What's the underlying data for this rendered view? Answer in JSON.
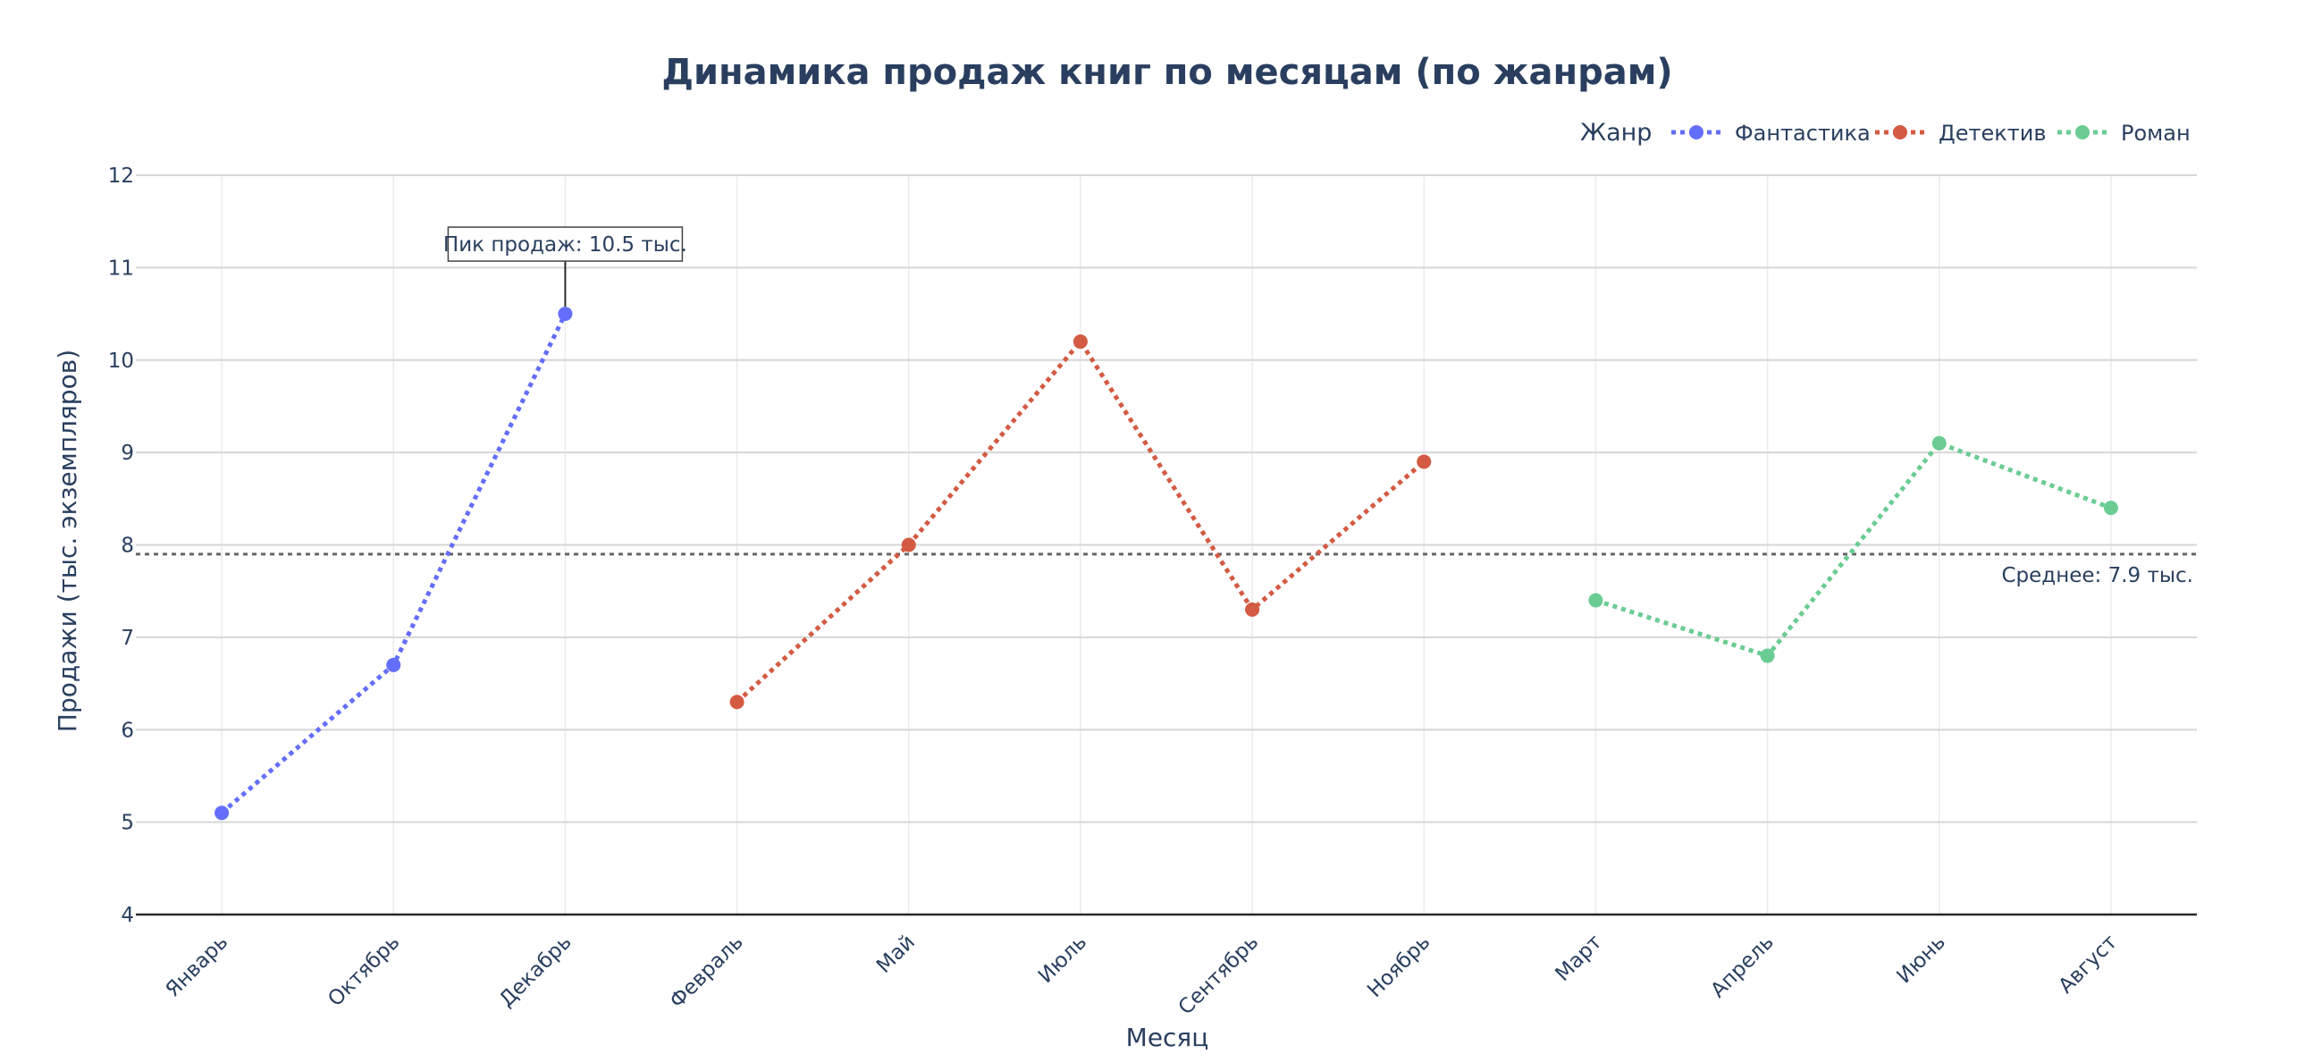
{
  "chart_data": {
    "type": "line",
    "title": "Динамика продаж книг по месяцам (по жанрам)",
    "xlabel": "Месяц",
    "ylabel": "Продажи (тыс. экземпляров)",
    "ylim": [
      4,
      12
    ],
    "yticks": [
      "4",
      "5",
      "6",
      "7",
      "8",
      "9",
      "10",
      "11",
      "12"
    ],
    "categories": [
      "Январь",
      "Октябрь",
      "Декабрь",
      "Февраль",
      "Май",
      "Июль",
      "Сентябрь",
      "Ноябрь",
      "Март",
      "Апрель",
      "Июнь",
      "Август"
    ],
    "grid": true,
    "legend": {
      "title": "Жанр",
      "position": "top-right",
      "orientation": "horizontal"
    },
    "series": [
      {
        "name": "Фантастика",
        "color": "#636efa",
        "line_style": "dotted",
        "x": [
          "Январь",
          "Октябрь",
          "Декабрь"
        ],
        "values": [
          5.1,
          6.7,
          10.5
        ]
      },
      {
        "name": "Детектив",
        "color": "#d35b43",
        "line_style": "dotted",
        "x": [
          "Февраль",
          "Май",
          "Июль",
          "Сентябрь",
          "Ноябрь"
        ],
        "values": [
          6.3,
          8.0,
          10.2,
          7.3,
          8.9
        ]
      },
      {
        "name": "Роман",
        "color": "#6acc92",
        "line_style": "dotted",
        "x": [
          "Март",
          "Апрель",
          "Июнь",
          "Август"
        ],
        "values": [
          7.4,
          6.8,
          9.1,
          8.4
        ]
      }
    ],
    "reference_line": {
      "value": 7.9,
      "label": "Среднее: 7.9 тыс.",
      "color": "#666666",
      "style": "dotted"
    },
    "annotations": [
      {
        "text": "Пик продаж: 10.5 тыс.",
        "x": "Декабрь",
        "y": 10.5
      }
    ]
  }
}
